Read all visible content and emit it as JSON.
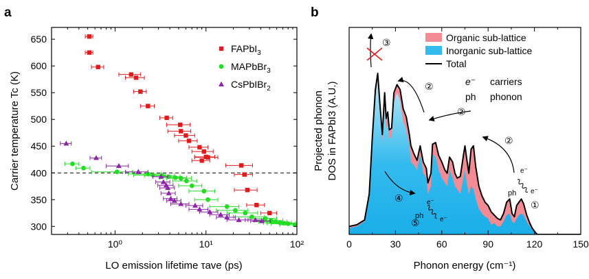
{
  "panels": [
    {
      "letter": "a"
    },
    {
      "letter": "b"
    }
  ],
  "chart_data": [
    {
      "type": "scatter",
      "panel": "a",
      "xlabel": "LO emission lifetime τave (ps)",
      "ylabel": "Carrier temperature Tc (K)",
      "xscale": "log",
      "xlim": [
        0.2,
        100
      ],
      "ylim": [
        285,
        672
      ],
      "xticks": [
        1,
        10,
        100
      ],
      "xtick_labels": [
        "10⁰",
        "10¹",
        "10²"
      ],
      "yticks": [
        300,
        350,
        400,
        450,
        500,
        550,
        600,
        650
      ],
      "reference_line": {
        "y": 400,
        "style": "dashed"
      },
      "legend_position": "top-right",
      "series": [
        {
          "name": "FAPbI3",
          "color": "#e31a1c",
          "marker": "square",
          "x": [
            0.52,
            0.52,
            0.65,
            1.5,
            1.7,
            1.9,
            2.3,
            3.7,
            5.2,
            5.3,
            6.0,
            6.5,
            8.5,
            9.0,
            9.5,
            10.0,
            10.5,
            24.5,
            26.5,
            28.5,
            36.0,
            50.0
          ],
          "y": [
            655,
            625,
            598,
            584,
            578,
            552,
            525,
            503,
            490,
            478,
            470,
            460,
            448,
            423,
            440,
            430,
            429,
            414,
            397,
            368,
            340,
            325
          ],
          "xerr": [
            0.05,
            0.05,
            0.1,
            0.4,
            0.4,
            0.3,
            0.4,
            0.6,
            1.5,
            1.5,
            1.5,
            1.5,
            2.0,
            2.0,
            2.5,
            2.5,
            3.0,
            8.0,
            6.0,
            8.0,
            8.0,
            10.0
          ]
        },
        {
          "name": "MAPbBr3",
          "color": "#22dd22",
          "marker": "circle",
          "x": [
            0.34,
            0.45,
            1.05,
            2.3,
            2.6,
            3.3,
            3.9,
            4.6,
            5.3,
            6.1,
            7.0,
            9.5,
            10.5,
            17.0,
            21.0,
            27.0,
            32.0,
            45.0,
            52.0,
            58.0,
            65.0,
            72.0,
            80.0,
            95.0
          ],
          "y": [
            417,
            409,
            402,
            398,
            396,
            395,
            393,
            391,
            390,
            385,
            376,
            366,
            350,
            337,
            330,
            325,
            318,
            315,
            311,
            309,
            307,
            306,
            305,
            303
          ],
          "xerr": [
            0.06,
            0.08,
            0.5,
            0.9,
            1.0,
            1.2,
            1.3,
            1.5,
            1.6,
            1.8,
            2.0,
            3.0,
            3.0,
            6.0,
            8.0,
            10.0,
            12.0,
            15.0,
            18.0,
            20.0,
            22.0,
            25.0,
            28.0,
            30.0
          ]
        },
        {
          "name": "CsPbIBr2",
          "color": "#8e24aa",
          "marker": "triangle",
          "x": [
            0.29,
            0.62,
            1.1,
            1.8,
            3.2,
            3.4,
            3.65,
            3.8,
            3.9,
            4.1,
            4.5,
            5.3,
            7.6,
            8.5,
            11.0,
            14.5,
            17.0,
            23.0,
            35.0,
            41.0
          ],
          "y": [
            455,
            428,
            413,
            402,
            393,
            383,
            377,
            372,
            362,
            352,
            348,
            342,
            339,
            332,
            327,
            322,
            317,
            312,
            312,
            310
          ],
          "xerr": [
            0.04,
            0.09,
            0.3,
            0.5,
            0.6,
            0.6,
            0.7,
            0.7,
            0.7,
            0.7,
            0.8,
            1.2,
            1.6,
            2.0,
            2.5,
            3.5,
            4.0,
            6.0,
            8.0,
            10.0
          ]
        }
      ]
    },
    {
      "type": "area",
      "panel": "b",
      "xlabel": "Phonon energy (cm⁻¹)",
      "ylabel_line1": "Projected phonon",
      "ylabel_line2": "DOS in FAPbI3 (A.U.)",
      "xlim": [
        0,
        150
      ],
      "ylim": [
        0,
        1.0
      ],
      "xticks": [
        0,
        30,
        60,
        90,
        120,
        150
      ],
      "legend_position": "top-right",
      "legend": [
        {
          "label": "Organic sub-lattice",
          "color": "#f28b94"
        },
        {
          "label": "Inorganic sub-lattice",
          "color": "#33bbee"
        },
        {
          "label": "Total",
          "color": "#000000"
        }
      ],
      "energy": [
        0,
        5,
        10,
        13,
        15,
        17,
        18.5,
        20,
        21.5,
        23,
        24,
        25,
        26,
        27.5,
        29,
        31,
        33,
        35,
        37,
        39,
        40,
        42,
        44,
        46,
        48,
        50,
        51,
        53,
        54,
        56,
        58,
        60,
        62,
        63.5,
        65,
        67,
        68.5,
        70,
        72,
        74,
        75,
        76,
        77.5,
        79,
        80.5,
        82,
        84,
        86,
        88,
        90,
        92,
        94,
        96,
        98,
        100,
        102,
        104,
        105.5,
        107,
        108.5,
        110,
        111.5,
        113,
        115,
        117,
        118.5,
        120,
        121,
        122,
        125,
        150
      ],
      "inorganic": [
        0.04,
        0.05,
        0.08,
        0.22,
        0.55,
        0.85,
        0.97,
        0.78,
        0.58,
        0.8,
        0.65,
        0.7,
        0.6,
        0.6,
        0.82,
        0.88,
        0.83,
        0.7,
        0.65,
        0.55,
        0.45,
        0.43,
        0.4,
        0.5,
        0.38,
        0.35,
        0.25,
        0.3,
        0.5,
        0.48,
        0.4,
        0.35,
        0.32,
        0.3,
        0.4,
        0.35,
        0.3,
        0.28,
        0.25,
        0.35,
        0.4,
        0.33,
        0.25,
        0.3,
        0.28,
        0.22,
        0.16,
        0.13,
        0.11,
        0.1,
        0.06,
        0.07,
        0.05,
        0.05,
        0.08,
        0.12,
        0.13,
        0.08,
        0.07,
        0.1,
        0.12,
        0.13,
        0.12,
        0.08,
        0.05,
        0.03,
        0.015,
        0.005,
        0.0,
        0.0,
        0.0
      ],
      "total": [
        0.05,
        0.06,
        0.09,
        0.25,
        0.6,
        0.9,
        1.0,
        0.8,
        0.62,
        0.88,
        0.72,
        0.76,
        0.65,
        0.66,
        0.88,
        0.93,
        0.9,
        0.78,
        0.73,
        0.62,
        0.55,
        0.5,
        0.46,
        0.55,
        0.45,
        0.41,
        0.32,
        0.38,
        0.56,
        0.57,
        0.49,
        0.45,
        0.4,
        0.38,
        0.48,
        0.45,
        0.38,
        0.35,
        0.36,
        0.49,
        0.55,
        0.48,
        0.38,
        0.53,
        0.55,
        0.42,
        0.3,
        0.24,
        0.2,
        0.18,
        0.14,
        0.12,
        0.1,
        0.09,
        0.13,
        0.2,
        0.22,
        0.13,
        0.11,
        0.18,
        0.2,
        0.22,
        0.19,
        0.12,
        0.07,
        0.04,
        0.02,
        0.008,
        0.0,
        0.0,
        0.0
      ]
    }
  ],
  "annotations": {
    "e_label": "e⁻",
    "carriers_text": "carriers",
    "ph_label": "ph",
    "phonon_text": "phonon",
    "circled": [
      "①",
      "②",
      "③",
      "④",
      "⑤"
    ]
  }
}
